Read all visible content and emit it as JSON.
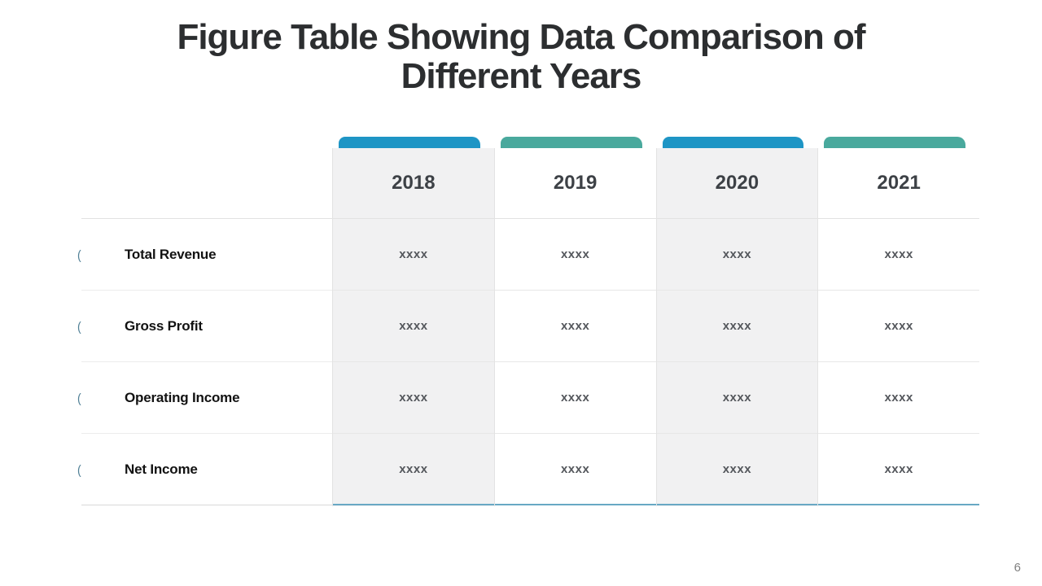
{
  "slide": {
    "title": {
      "line1": "Figure Table Showing Data Comparison of",
      "line2": "Different Years"
    },
    "page_number": "6"
  },
  "table": {
    "row_marker_glyph": "(",
    "columns": [
      {
        "label": "2018",
        "tab_color": "#1e95c5",
        "bg": "#f1f1f2"
      },
      {
        "label": "2019",
        "tab_color": "#49a99d",
        "bg": "#ffffff"
      },
      {
        "label": "2020",
        "tab_color": "#1e95c5",
        "bg": "#f1f1f2"
      },
      {
        "label": "2021",
        "tab_color": "#49a99d",
        "bg": "#ffffff"
      }
    ],
    "rows": [
      {
        "label": "Total Revenue",
        "values": [
          "xxxx",
          "xxxx",
          "xxxx",
          "xxxx"
        ]
      },
      {
        "label": "Gross Profit",
        "values": [
          "xxxx",
          "xxxx",
          "xxxx",
          "xxxx"
        ]
      },
      {
        "label": "Operating Income",
        "values": [
          "xxxx",
          "xxxx",
          "xxxx",
          "xxxx"
        ]
      },
      {
        "label": "Net Income",
        "values": [
          "xxxx",
          "xxxx",
          "xxxx",
          "xxxx"
        ]
      }
    ]
  },
  "colors": {
    "accent_blue": "#1e95c5",
    "accent_teal": "#49a99d",
    "bottom_rule_blue": "#68a8c4"
  }
}
